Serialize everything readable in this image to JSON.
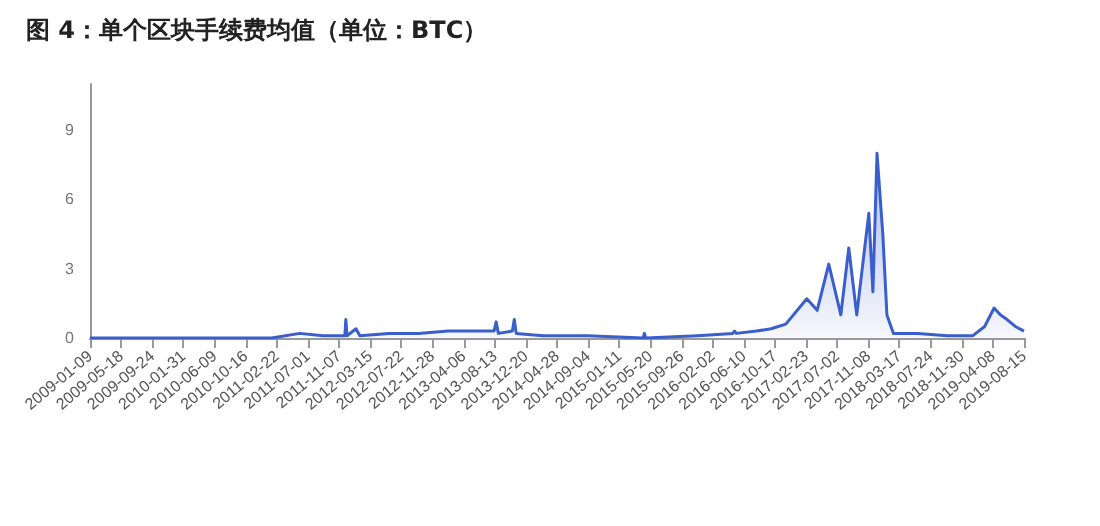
{
  "chart_data": {
    "type": "area",
    "title": "图 4：单个区块手续费均值（单位：BTC）",
    "marker": "none",
    "grid": false,
    "x": [
      "2009-01-09",
      "2010-06-01",
      "2011-02-01",
      "2011-05-28",
      "2011-09-01",
      "2011-12-01",
      "2011-12-05",
      "2011-12-10",
      "2012-01-16",
      "2012-02-01",
      "2012-06-01",
      "2012-10-01",
      "2013-02-01",
      "2013-05-01",
      "2013-08-10",
      "2013-08-19",
      "2013-08-28",
      "2013-10-25",
      "2013-11-02",
      "2013-11-10",
      "2014-03-01",
      "2014-09-01",
      "2015-04-20",
      "2015-04-25",
      "2015-05-01",
      "2015-12-01",
      "2016-04-25",
      "2016-05-03",
      "2016-05-10",
      "2016-08-01",
      "2016-10-01",
      "2016-12-01",
      "2017-02-26",
      "2017-04-10",
      "2017-05-28",
      "2017-07-17",
      "2017-08-19",
      "2017-09-21",
      "2017-11-10",
      "2017-11-27",
      "2017-12-14",
      "2018-01-07",
      "2018-01-24",
      "2018-02-20",
      "2018-06-01",
      "2018-10-01",
      "2019-01-15",
      "2019-03-05",
      "2019-04-13",
      "2019-05-10",
      "2019-06-06",
      "2019-07-10",
      "2019-08-15"
    ],
    "values": [
      0,
      0,
      0,
      0.2,
      0.1,
      0.1,
      0.8,
      0.1,
      0.4,
      0.1,
      0.2,
      0.2,
      0.3,
      0.3,
      0.3,
      0.7,
      0.2,
      0.3,
      0.8,
      0.2,
      0.1,
      0.1,
      0,
      0.2,
      0,
      0.1,
      0.2,
      0.3,
      0.2,
      0.3,
      0.4,
      0.6,
      1.7,
      1.2,
      3.2,
      1.0,
      3.9,
      1.0,
      5.4,
      2.0,
      8.0,
      4.5,
      1.0,
      0.2,
      0.2,
      0.1,
      0.1,
      0.5,
      1.3,
      1.0,
      0.8,
      0.5,
      0.3
    ],
    "color": "#3a5fcd",
    "ylim": [
      0,
      11
    ],
    "yticks": [
      0,
      3,
      6,
      9
    ],
    "xlim": [
      "2009-01-09",
      "2019-08-15"
    ],
    "xticks": [
      "2009-01-09",
      "2009-05-18",
      "2009-09-24",
      "2010-01-31",
      "2010-06-09",
      "2010-10-16",
      "2011-02-22",
      "2011-07-01",
      "2011-11-07",
      "2012-03-15",
      "2012-07-22",
      "2012-11-28",
      "2013-04-06",
      "2013-08-13",
      "2013-12-20",
      "2014-04-28",
      "2014-09-04",
      "2015-01-11",
      "2015-05-20",
      "2015-09-26",
      "2016-02-02",
      "2016-06-10",
      "2016-10-17",
      "2017-02-23",
      "2017-07-02",
      "2017-11-08",
      "2018-03-17",
      "2018-07-24",
      "2018-11-30",
      "2019-04-08",
      "2019-08-15"
    ]
  }
}
